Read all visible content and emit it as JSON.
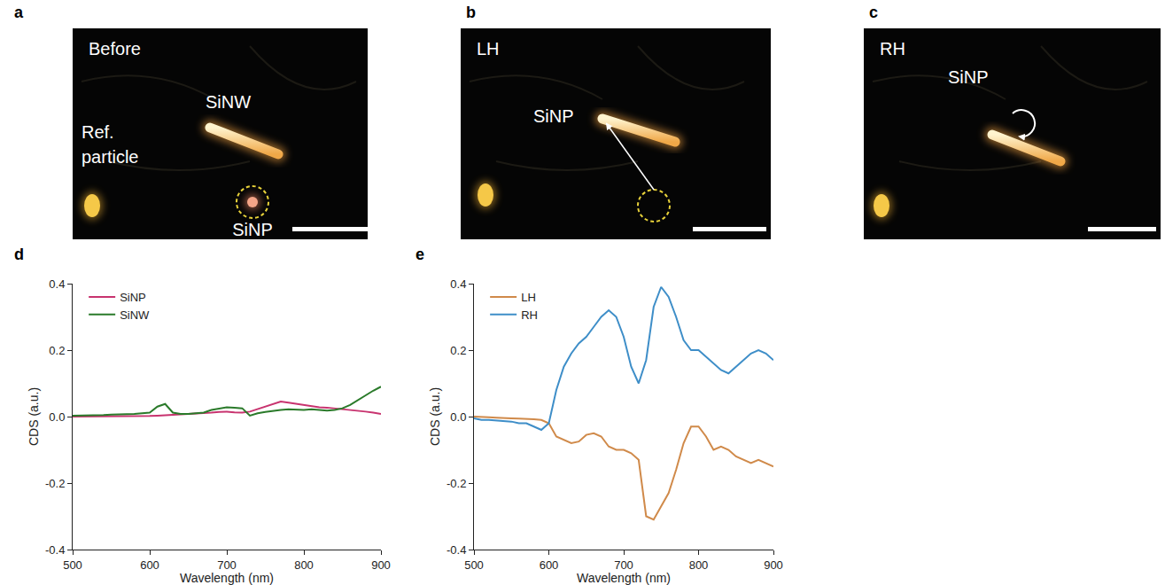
{
  "image_panels": [
    {
      "letter": "a",
      "caption": "Before",
      "labels": {
        "nanowire": "SiNW",
        "reference": "Ref. particle",
        "nanoparticle": "SiNP"
      }
    },
    {
      "letter": "b",
      "caption": "LH",
      "labels": {
        "nanoparticle": "SiNP"
      }
    },
    {
      "letter": "c",
      "caption": "RH",
      "labels": {
        "nanoparticle": "SiNP"
      }
    }
  ],
  "chart_data": [
    {
      "panel": "d",
      "type": "line",
      "x_label": "Wavelength (nm)",
      "y_label": "CDS (a.u.)",
      "xlim": [
        500,
        900
      ],
      "xticks": [
        500,
        600,
        700,
        800,
        900
      ],
      "ylim": [
        -0.4,
        0.4
      ],
      "yticks": [
        -0.4,
        -0.2,
        {
          "value": 0,
          "label": "0.0"
        },
        0.2,
        0.4
      ],
      "grid": false,
      "legend": "top left",
      "x": [
        500,
        510,
        520,
        530,
        540,
        550,
        560,
        570,
        580,
        590,
        600,
        610,
        620,
        630,
        640,
        650,
        660,
        670,
        680,
        690,
        700,
        710,
        720,
        730,
        740,
        750,
        760,
        770,
        780,
        790,
        800,
        810,
        820,
        830,
        840,
        850,
        860,
        870,
        880,
        890,
        900
      ],
      "series": [
        {
          "name": "SiNP",
          "color": "#c8336f",
          "values": [
            0,
            0,
            0,
            0,
            0,
            0,
            0,
            0,
            0,
            0,
            0.002,
            0.003,
            0.004,
            0.005,
            0.006,
            0.007,
            0.008,
            0.01,
            0.012,
            0.014,
            0.015,
            0.013,
            0.012,
            0.015,
            0.022,
            0.03,
            0.038,
            0.045,
            0.042,
            0.038,
            0.035,
            0.03,
            0.028,
            0.027,
            0.025,
            0.022,
            0.02,
            0.018,
            0.015,
            0.012,
            0.008
          ]
        },
        {
          "name": "SiNW",
          "color": "#2a7a2a",
          "values": [
            0.003,
            0.003,
            0.004,
            0.005,
            0.005,
            0.006,
            0.006,
            0.007,
            0.008,
            0.01,
            0.012,
            0.03,
            0.038,
            0.012,
            0.008,
            0.008,
            0.01,
            0.012,
            0.02,
            0.025,
            0.028,
            0.027,
            0.025,
            0.003,
            0.01,
            0.014,
            0.018,
            0.02,
            0.022,
            0.02,
            0.02,
            0.022,
            0.02,
            0.018,
            0.02,
            0.025,
            0.035,
            0.05,
            0.065,
            0.078,
            0.09
          ]
        }
      ]
    },
    {
      "panel": "e",
      "type": "line",
      "x_label": "Wavelength (nm)",
      "y_label": "CDS (a.u.)",
      "xlim": [
        500,
        900
      ],
      "xticks": [
        500,
        600,
        700,
        800,
        900
      ],
      "ylim": [
        -0.4,
        0.4
      ],
      "yticks": [
        -0.4,
        -0.2,
        {
          "value": 0,
          "label": "0.0"
        },
        0.2,
        0.4
      ],
      "grid": false,
      "legend": "top left",
      "x": [
        500,
        510,
        520,
        530,
        540,
        550,
        560,
        570,
        580,
        590,
        600,
        610,
        620,
        630,
        640,
        650,
        660,
        670,
        680,
        690,
        700,
        710,
        720,
        730,
        740,
        750,
        760,
        770,
        780,
        790,
        800,
        810,
        820,
        830,
        840,
        850,
        860,
        870,
        880,
        890,
        900
      ],
      "series": [
        {
          "name": "LH",
          "color": "#d08a4a",
          "values": [
            0,
            0,
            -0.002,
            -0.003,
            -0.005,
            -0.005,
            -0.006,
            -0.006,
            -0.008,
            -0.01,
            -0.02,
            -0.06,
            -0.07,
            -0.08,
            -0.075,
            -0.055,
            -0.05,
            -0.06,
            -0.09,
            -0.1,
            -0.1,
            -0.11,
            -0.13,
            -0.3,
            -0.31,
            -0.27,
            -0.23,
            -0.16,
            -0.08,
            -0.03,
            -0.03,
            -0.06,
            -0.1,
            -0.09,
            -0.1,
            -0.12,
            -0.13,
            -0.14,
            -0.13,
            -0.14,
            -0.15
          ]
        },
        {
          "name": "RH",
          "color": "#3e8ec8",
          "values": [
            -0.005,
            -0.01,
            -0.01,
            -0.012,
            -0.012,
            -0.015,
            -0.02,
            -0.02,
            -0.03,
            -0.04,
            -0.02,
            0.08,
            0.15,
            0.19,
            0.22,
            0.24,
            0.27,
            0.3,
            0.32,
            0.3,
            0.24,
            0.15,
            0.1,
            0.17,
            0.33,
            0.39,
            0.36,
            0.3,
            0.23,
            0.2,
            0.2,
            0.18,
            0.16,
            0.14,
            0.13,
            0.15,
            0.17,
            0.19,
            0.2,
            0.19,
            0.17
          ]
        }
      ]
    }
  ]
}
